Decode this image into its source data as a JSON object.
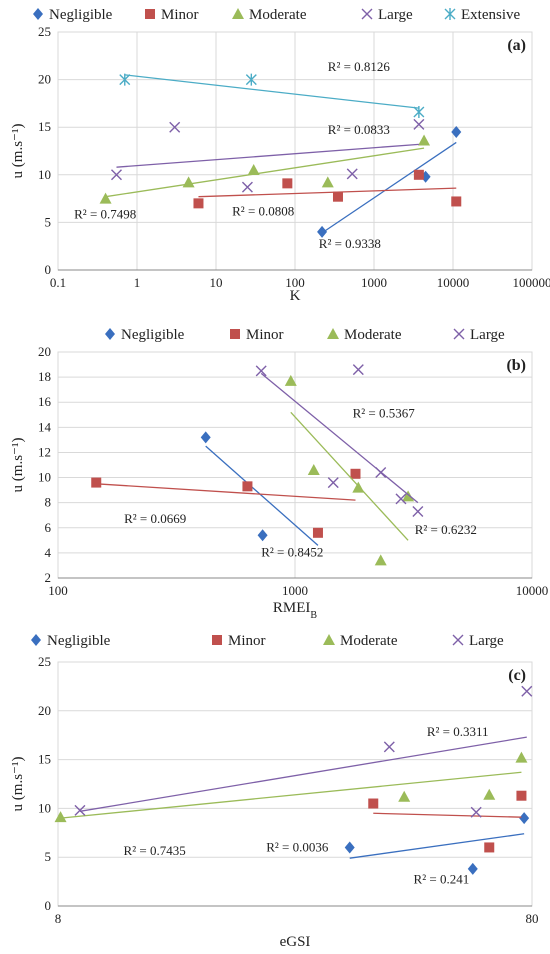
{
  "colors": {
    "Negligible": "#3A6FBF",
    "Minor": "#C0504D",
    "Moderate": "#9BBB59",
    "Large": "#7E60A8",
    "Extensive": "#4BACC6",
    "grid": "#D9D9D9",
    "axis": "#888888"
  },
  "chart_data": [
    {
      "type": "scatter",
      "panel_label": "(a)",
      "xlabel": "K",
      "ylabel": "u (m.s⁻¹)",
      "x_scale": "log",
      "xlim": [
        0.1,
        100000
      ],
      "ylim": [
        0,
        25
      ],
      "x_ticks": [
        0.1,
        1,
        10,
        100,
        1000,
        10000,
        100000
      ],
      "x_tick_labels": [
        "0.1",
        "1",
        "10",
        "100",
        "1000",
        "10000",
        "100000"
      ],
      "y_ticks": [
        0,
        5,
        10,
        15,
        20,
        25
      ],
      "grid": true,
      "legend_position": "top",
      "series": [
        {
          "name": "Negligible",
          "marker": "diamond",
          "points": [
            [
              220,
              4.0
            ],
            [
              4500,
              9.8
            ],
            [
              11000,
              14.5
            ]
          ],
          "trend": [
            [
              220,
              3.9
            ],
            [
              11000,
              13.4
            ]
          ],
          "r2": "R² = 0.9338",
          "r2_at": [
            200,
            2.3
          ]
        },
        {
          "name": "Minor",
          "marker": "square",
          "points": [
            [
              6,
              7.0
            ],
            [
              80,
              9.1
            ],
            [
              350,
              7.7
            ],
            [
              3700,
              10.0
            ],
            [
              11000,
              7.2
            ]
          ],
          "trend": [
            [
              6,
              7.7
            ],
            [
              11000,
              8.6
            ]
          ],
          "r2": "R² = 0.0808",
          "r2_at": [
            16,
            5.7
          ]
        },
        {
          "name": "Moderate",
          "marker": "triangle",
          "points": [
            [
              0.4,
              7.5
            ],
            [
              4.5,
              9.2
            ],
            [
              30,
              10.5
            ],
            [
              260,
              9.2
            ],
            [
              4300,
              13.6
            ]
          ],
          "trend": [
            [
              0.4,
              7.7
            ],
            [
              4300,
              12.8
            ]
          ],
          "r2": "R² = 0.7498",
          "r2_at": [
            0.16,
            5.4
          ]
        },
        {
          "name": "Large",
          "marker": "x",
          "points": [
            [
              0.55,
              10.0
            ],
            [
              3,
              15.0
            ],
            [
              25,
              8.7
            ],
            [
              530,
              10.1
            ],
            [
              3700,
              15.3
            ]
          ],
          "trend": [
            [
              0.55,
              10.8
            ],
            [
              3700,
              13.2
            ]
          ],
          "r2": "R² = 0.0833",
          "r2_at": [
            260,
            14.3
          ]
        },
        {
          "name": "Extensive",
          "marker": "asterisk",
          "points": [
            [
              0.7,
              20.0
            ],
            [
              28,
              20.0
            ],
            [
              3700,
              16.6
            ]
          ],
          "trend": [
            [
              0.7,
              20.5
            ],
            [
              3700,
              17.0
            ]
          ],
          "r2": "R² = 0.8126",
          "r2_at": [
            260,
            20.9
          ]
        }
      ]
    },
    {
      "type": "scatter",
      "panel_label": "(b)",
      "xlabel": "RMEI",
      "xlabel_sub": "B",
      "ylabel": "u (m.s⁻¹)",
      "x_scale": "log",
      "xlim": [
        100,
        10000
      ],
      "ylim": [
        2,
        20
      ],
      "x_ticks": [
        100,
        1000,
        10000
      ],
      "x_tick_labels": [
        "100",
        "1000",
        "10000"
      ],
      "y_ticks": [
        2,
        4,
        6,
        8,
        10,
        12,
        14,
        16,
        18,
        20
      ],
      "grid": true,
      "legend_position": "top",
      "series": [
        {
          "name": "Negligible",
          "marker": "diamond",
          "points": [
            [
              420,
              13.2
            ],
            [
              730,
              5.4
            ]
          ],
          "trend": [
            [
              420,
              12.5
            ],
            [
              1250,
              4.6
            ]
          ],
          "r2": "R² = 0.8452",
          "r2_at": [
            720,
            3.7
          ]
        },
        {
          "name": "Minor",
          "marker": "square",
          "points": [
            [
              145,
              9.6
            ],
            [
              630,
              9.3
            ],
            [
              1250,
              5.6
            ],
            [
              1800,
              10.3
            ]
          ],
          "trend": [
            [
              145,
              9.5
            ],
            [
              1800,
              8.2
            ]
          ],
          "r2": "R² = 0.0669",
          "r2_at": [
            190,
            6.4
          ]
        },
        {
          "name": "Moderate",
          "marker": "triangle",
          "points": [
            [
              960,
              17.7
            ],
            [
              1200,
              10.6
            ],
            [
              1850,
              9.2
            ],
            [
              2300,
              3.4
            ],
            [
              3000,
              8.5
            ]
          ],
          "trend": [
            [
              960,
              15.2
            ],
            [
              3000,
              5.0
            ]
          ],
          "r2": "R² = 0.6232",
          "r2_at": [
            3200,
            5.5
          ]
        },
        {
          "name": "Large",
          "marker": "x",
          "points": [
            [
              720,
              18.5
            ],
            [
              1450,
              9.6
            ],
            [
              1850,
              18.6
            ],
            [
              2300,
              10.4
            ],
            [
              2800,
              8.3
            ],
            [
              3300,
              7.3
            ]
          ],
          "trend": [
            [
              720,
              18.3
            ],
            [
              3300,
              8.0
            ]
          ],
          "r2": "R² = 0.5367",
          "r2_at": [
            1750,
            14.8
          ]
        }
      ]
    },
    {
      "type": "scatter",
      "panel_label": "(c)",
      "xlabel": "eGSI",
      "ylabel": "u (m.s⁻¹)",
      "x_scale": "log",
      "xlim": [
        8,
        80
      ],
      "ylim": [
        0,
        25
      ],
      "x_ticks": [
        8,
        80
      ],
      "x_tick_labels": [
        "8",
        "80"
      ],
      "y_ticks": [
        0,
        5,
        10,
        15,
        20,
        25
      ],
      "grid": true,
      "legend_position": "top",
      "series": [
        {
          "name": "Negligible",
          "marker": "diamond",
          "points": [
            [
              33,
              6.0
            ],
            [
              60,
              3.8
            ],
            [
              77,
              9.0
            ]
          ],
          "trend": [
            [
              33,
              4.9
            ],
            [
              77,
              7.4
            ]
          ],
          "r2": "R² = 0.241",
          "r2_at": [
            45,
            2.3
          ]
        },
        {
          "name": "Minor",
          "marker": "square",
          "points": [
            [
              37,
              10.5
            ],
            [
              65,
              6.0
            ],
            [
              76,
              11.3
            ]
          ],
          "trend": [
            [
              37,
              9.5
            ],
            [
              76,
              9.1
            ]
          ],
          "r2": "R² = 0.0036",
          "r2_at": [
            22,
            5.6
          ]
        },
        {
          "name": "Moderate",
          "marker": "triangle",
          "points": [
            [
              8.1,
              9.1
            ],
            [
              43,
              11.2
            ],
            [
              65,
              11.4
            ],
            [
              76,
              15.2
            ]
          ],
          "trend": [
            [
              8.1,
              9.0
            ],
            [
              76,
              13.7
            ]
          ],
          "r2": "R² = 0.7435",
          "r2_at": [
            11,
            5.2
          ]
        },
        {
          "name": "Large",
          "marker": "x",
          "points": [
            [
              8.9,
              9.8
            ],
            [
              40,
              16.3
            ],
            [
              61,
              9.6
            ],
            [
              78,
              22.0
            ]
          ],
          "trend": [
            [
              8.9,
              9.7
            ],
            [
              78,
              17.3
            ]
          ],
          "r2": "R² = 0.3311",
          "r2_at": [
            48,
            17.4
          ]
        }
      ]
    }
  ]
}
